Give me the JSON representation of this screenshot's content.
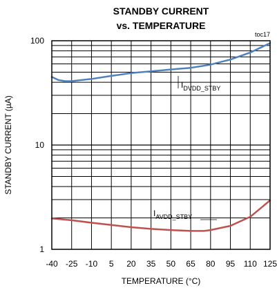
{
  "chart_data": {
    "type": "line",
    "title_line1": "STANDBY CURRENT",
    "title_line2": "vs. TEMPERATURE",
    "figure_id": "toc17",
    "xlabel": "TEMPERATURE (°C)",
    "ylabel": "STANDBY CURRENT (µA)",
    "xlim": [
      -40,
      125
    ],
    "ylim": [
      1,
      100
    ],
    "y_scale": "log",
    "grid": true,
    "x_ticks": [
      -40,
      -25,
      -10,
      5,
      20,
      35,
      50,
      65,
      80,
      95,
      110,
      125
    ],
    "y_ticks": [
      1,
      10,
      100
    ],
    "x_tick_labels": [
      "-40",
      "-25",
      "-10",
      "5",
      "20",
      "35",
      "50",
      "65",
      "80",
      "95",
      "110",
      "125"
    ],
    "y_tick_labels": [
      "1",
      "10",
      "100"
    ],
    "series": [
      {
        "label_main": "I",
        "label_sub": "DVDD_STBY",
        "color": "#4f81bd",
        "x": [
          -40,
          -35,
          -30,
          -25,
          -10,
          5,
          20,
          35,
          50,
          65,
          80,
          95,
          110,
          125
        ],
        "y": [
          45,
          42,
          41,
          41,
          43,
          46,
          49,
          51,
          53,
          55,
          59,
          66,
          77,
          95
        ]
      },
      {
        "label_main": "I",
        "label_sub": "AVDD_STBY",
        "color": "#c0504d",
        "x": [
          -40,
          -25,
          -10,
          5,
          20,
          35,
          50,
          65,
          75,
          80,
          95,
          110,
          125
        ],
        "y": [
          1.98,
          1.9,
          1.8,
          1.71,
          1.63,
          1.57,
          1.53,
          1.5,
          1.5,
          1.53,
          1.68,
          2.05,
          2.95
        ]
      }
    ]
  }
}
